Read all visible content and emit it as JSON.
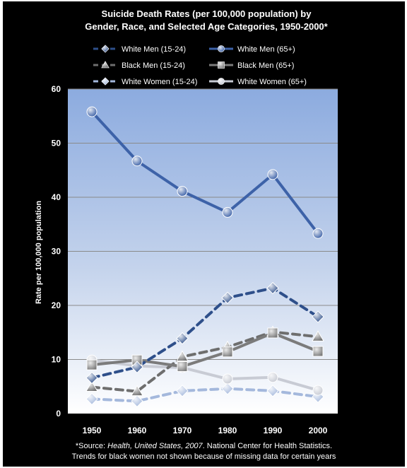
{
  "chart_data": {
    "type": "line",
    "title_line1": "Suicide Death Rates (per 100,000 population)  by",
    "title_line2": "Gender, Race, and Selected Age Categories, 1950-2000*",
    "ylabel": "Rate per 100,000 population",
    "xlabel": "",
    "x": [
      1950,
      1960,
      1970,
      1980,
      1990,
      2000
    ],
    "ylim": [
      0,
      60
    ],
    "yticks": [
      0,
      10,
      20,
      30,
      40,
      50,
      60
    ],
    "grid": true,
    "legend_position": "top",
    "series": [
      {
        "name": "White Men (15-24)",
        "values": [
          6.6,
          8.6,
          13.9,
          21.4,
          23.2,
          17.9
        ],
        "color": "#2e4f8a",
        "dash": true,
        "marker": "diamond"
      },
      {
        "name": "White Men (65+)",
        "values": [
          55.8,
          46.7,
          41.1,
          37.2,
          44.2,
          33.3
        ],
        "color": "#3d62a8",
        "dash": false,
        "marker": "circle"
      },
      {
        "name": "Black Men (15-24)",
        "values": [
          4.9,
          4.1,
          10.5,
          12.3,
          15.1,
          14.2
        ],
        "color": "#6e6e6e",
        "dash": true,
        "marker": "triangle"
      },
      {
        "name": "Black Men (65+)",
        "values": [
          9.0,
          9.9,
          8.7,
          11.4,
          14.9,
          11.5
        ],
        "color": "#7b7b7b",
        "dash": false,
        "marker": "square"
      },
      {
        "name": "White Women (15-24)",
        "values": [
          2.7,
          2.3,
          4.2,
          4.6,
          4.2,
          3.1
        ],
        "color": "#a4b8dc",
        "dash": true,
        "marker": "diamond"
      },
      {
        "name": "White Women (65+)",
        "values": [
          9.9,
          8.8,
          8.5,
          6.4,
          6.7,
          4.3
        ],
        "color": "#c8cbd4",
        "dash": false,
        "marker": "circle"
      }
    ]
  },
  "source": {
    "prefix": "*Source: ",
    "publication": "Health, United States, 2007",
    "suffix": ".  National Center for Health Statistics.",
    "line2": "Trends for black women not shown because of missing data for certain years"
  }
}
